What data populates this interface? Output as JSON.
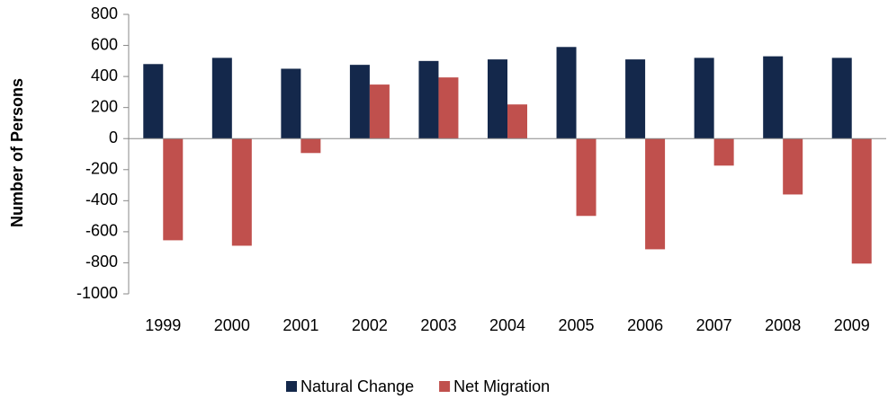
{
  "chart_data": {
    "type": "bar",
    "y_label": "Number of Persons",
    "categories": [
      "1999",
      "2000",
      "2001",
      "2002",
      "2003",
      "2004",
      "2005",
      "2006",
      "2007",
      "2008",
      "2009"
    ],
    "series": [
      {
        "name": "Natural Change",
        "color": "#14284b",
        "values": [
          480,
          520,
          450,
          475,
          500,
          510,
          590,
          510,
          520,
          530,
          520
        ]
      },
      {
        "name": "Net Migration",
        "color": "#c0504d",
        "values": [
          -655,
          -690,
          -93,
          348,
          394,
          220,
          -498,
          -713,
          -174,
          -360,
          -805
        ]
      }
    ],
    "ylim": [
      -1000,
      800
    ],
    "yticks": [
      -1000,
      -800,
      -600,
      -400,
      -200,
      0,
      200,
      400,
      600,
      800
    ],
    "legend": "bottom"
  }
}
